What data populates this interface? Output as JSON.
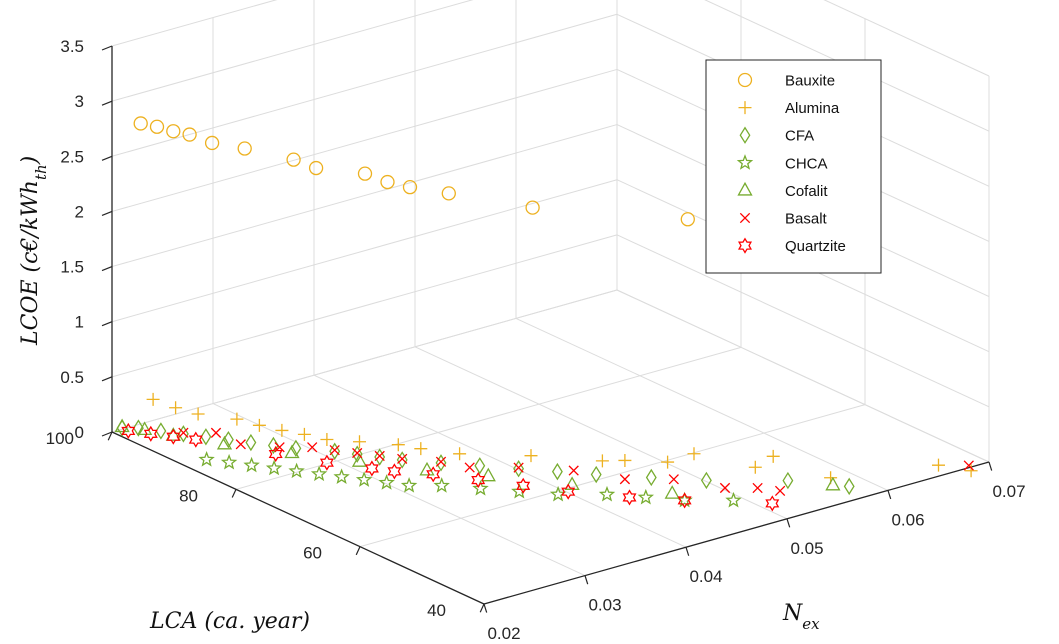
{
  "chart_data": {
    "type": "scatter",
    "projection": "3d",
    "title": "",
    "xlabel": "LCA (ca. year)",
    "ylabel": "N_ex",
    "zlabel": "LCOE (c€/kWh_th)",
    "axis_labels": {
      "x": {
        "main": "LCA (ca. year)"
      },
      "y": {
        "main": "N",
        "sub": "ex"
      },
      "z": {
        "main": "LCOE (c€/kWh",
        "sub": "th",
        "close": ")"
      }
    },
    "xlim": [
      40,
      100
    ],
    "ylim": [
      0.02,
      0.07
    ],
    "zlim": [
      0,
      3.5
    ],
    "x_ticks": [
      "40",
      "60",
      "80",
      "100"
    ],
    "x_tick_values": [
      40,
      60,
      80,
      100
    ],
    "y_ticks": [
      "0.02",
      "0.03",
      "0.04",
      "0.05",
      "0.06",
      "0.07"
    ],
    "y_tick_values": [
      0.02,
      0.03,
      0.04,
      0.05,
      0.06,
      0.07
    ],
    "z_ticks": [
      "0",
      "0.5",
      "1",
      "1.5",
      "2",
      "2.5",
      "3",
      "3.5"
    ],
    "z_tick_values": [
      0,
      0.5,
      1,
      1.5,
      2,
      2.5,
      3,
      3.5
    ],
    "grid": true,
    "legend_position": "top-right",
    "series": [
      {
        "name": "Bauxite",
        "marker": "circle",
        "color": "#EDB120",
        "points": [
          [
            97,
            0.021,
            2.85
          ],
          [
            96,
            0.022,
            2.82
          ],
          [
            95,
            0.023,
            2.78
          ],
          [
            94,
            0.024,
            2.75
          ],
          [
            92,
            0.025,
            2.7
          ],
          [
            90,
            0.027,
            2.65
          ],
          [
            87,
            0.03,
            2.55
          ],
          [
            85,
            0.031,
            2.5
          ],
          [
            82,
            0.034,
            2.45
          ],
          [
            80,
            0.035,
            2.4
          ],
          [
            78,
            0.036,
            2.38
          ],
          [
            75,
            0.038,
            2.35
          ],
          [
            68,
            0.042,
            2.3
          ],
          [
            56,
            0.05,
            2.3
          ],
          [
            52,
            0.055,
            2.3
          ]
        ]
      },
      {
        "name": "Alumina",
        "marker": "plus",
        "color": "#EDB120",
        "points": [
          [
            95,
            0.021,
            0.4
          ],
          [
            93,
            0.022,
            0.35
          ],
          [
            91,
            0.023,
            0.32
          ],
          [
            88,
            0.025,
            0.3
          ],
          [
            86,
            0.026,
            0.27
          ],
          [
            84,
            0.027,
            0.25
          ],
          [
            82,
            0.028,
            0.24
          ],
          [
            80,
            0.029,
            0.22
          ],
          [
            78,
            0.031,
            0.2
          ],
          [
            75,
            0.033,
            0.2
          ],
          [
            73,
            0.034,
            0.19
          ],
          [
            70,
            0.036,
            0.17
          ],
          [
            65,
            0.04,
            0.18
          ],
          [
            60,
            0.044,
            0.16
          ],
          [
            56,
            0.048,
            0.15
          ],
          [
            50,
            0.053,
            0.13
          ],
          [
            58,
            0.045,
            0.19
          ],
          [
            55,
            0.05,
            0.2
          ],
          [
            52,
            0.056,
            0.1
          ],
          [
            46,
            0.058,
            0.01
          ],
          [
            40,
            0.065,
            0.1
          ],
          [
            38,
            0.067,
            0.05
          ]
        ]
      },
      {
        "name": "CFA",
        "marker": "diamond",
        "color": "#77AC30",
        "points": [
          [
            100,
            0.021,
            0.01
          ],
          [
            99,
            0.022,
            0.01
          ],
          [
            97,
            0.023,
            0.01
          ],
          [
            95,
            0.024,
            0.01
          ],
          [
            93,
            0.025,
            0.01
          ],
          [
            91,
            0.026,
            0.01
          ],
          [
            89,
            0.027,
            0.01
          ],
          [
            87,
            0.028,
            0.01
          ],
          [
            85,
            0.029,
            0.01
          ],
          [
            82,
            0.031,
            0.01
          ],
          [
            80,
            0.032,
            0.01
          ],
          [
            78,
            0.033,
            0.01
          ],
          [
            76,
            0.034,
            0.01
          ],
          [
            73,
            0.036,
            0.01
          ],
          [
            70,
            0.038,
            0.01
          ],
          [
            67,
            0.04,
            0.01
          ],
          [
            64,
            0.042,
            0.01
          ],
          [
            61,
            0.044,
            0.01
          ],
          [
            57,
            0.047,
            0.01
          ],
          [
            53,
            0.05,
            0.01
          ],
          [
            48,
            0.055,
            0.01
          ],
          [
            43,
            0.058,
            0.01
          ]
        ]
      },
      {
        "name": "CHCA",
        "marker": "star",
        "color": "#77AC30",
        "points": [
          [
            88,
            0.022,
            0.01
          ],
          [
            86,
            0.023,
            0.01
          ],
          [
            84,
            0.024,
            0.01
          ],
          [
            82,
            0.025,
            0.01
          ],
          [
            80,
            0.026,
            0.01
          ],
          [
            78,
            0.027,
            0.01
          ],
          [
            76,
            0.028,
            0.01
          ],
          [
            74,
            0.029,
            0.01
          ],
          [
            72,
            0.03,
            0.01
          ],
          [
            70,
            0.031,
            0.01
          ],
          [
            68,
            0.033,
            0.01
          ],
          [
            65,
            0.035,
            0.01
          ],
          [
            62,
            0.037,
            0.01
          ],
          [
            59,
            0.039,
            0.01
          ],
          [
            56,
            0.042,
            0.01
          ],
          [
            53,
            0.044,
            0.01
          ],
          [
            50,
            0.046,
            0.01
          ],
          [
            47,
            0.049,
            0.01
          ]
        ]
      },
      {
        "name": "Cofalit",
        "marker": "triangle",
        "color": "#77AC30",
        "points": [
          [
            100,
            0.021,
            0.02
          ],
          [
            98,
            0.022,
            0.02
          ],
          [
            95,
            0.023,
            0.02
          ],
          [
            90,
            0.025,
            0.02
          ],
          [
            84,
            0.028,
            0.02
          ],
          [
            78,
            0.031,
            0.02
          ],
          [
            72,
            0.034,
            0.02
          ],
          [
            67,
            0.037,
            0.02
          ],
          [
            60,
            0.041,
            0.02
          ],
          [
            52,
            0.046,
            0.02
          ],
          [
            44,
            0.057,
            0.02
          ]
        ]
      },
      {
        "name": "Basalt",
        "marker": "x",
        "color": "#FF0000",
        "points": [
          [
            95,
            0.024,
            0.02
          ],
          [
            93,
            0.026,
            0.02
          ],
          [
            89,
            0.026,
            0.02
          ],
          [
            86,
            0.028,
            0.02
          ],
          [
            84,
            0.03,
            0.02
          ],
          [
            82,
            0.031,
            0.02
          ],
          [
            80,
            0.032,
            0.02
          ],
          [
            78,
            0.033,
            0.02
          ],
          [
            76,
            0.034,
            0.02
          ],
          [
            73,
            0.036,
            0.02
          ],
          [
            70,
            0.037,
            0.02
          ],
          [
            67,
            0.04,
            0.02
          ],
          [
            63,
            0.043,
            0.02
          ],
          [
            58,
            0.045,
            0.02
          ],
          [
            55,
            0.048,
            0.02
          ],
          [
            50,
            0.05,
            0.02
          ],
          [
            48,
            0.052,
            0.02
          ],
          [
            46,
            0.053,
            0.02
          ],
          [
            40,
            0.068,
            0.02
          ]
        ]
      },
      {
        "name": "Quartzite",
        "marker": "hexagram",
        "color": "#FF0000",
        "points": [
          [
            99,
            0.021,
            0.01
          ],
          [
            97,
            0.022,
            0.01
          ],
          [
            95,
            0.023,
            0.01
          ],
          [
            93,
            0.024,
            0.01
          ],
          [
            85,
            0.027,
            0.01
          ],
          [
            80,
            0.029,
            0.01
          ],
          [
            76,
            0.031,
            0.01
          ],
          [
            74,
            0.032,
            0.01
          ],
          [
            71,
            0.034,
            0.01
          ],
          [
            67,
            0.036,
            0.01
          ],
          [
            63,
            0.038,
            0.01
          ],
          [
            59,
            0.04,
            0.01
          ],
          [
            54,
            0.043,
            0.01
          ],
          [
            50,
            0.046,
            0.01
          ],
          [
            44,
            0.051,
            0.01
          ]
        ]
      }
    ]
  }
}
